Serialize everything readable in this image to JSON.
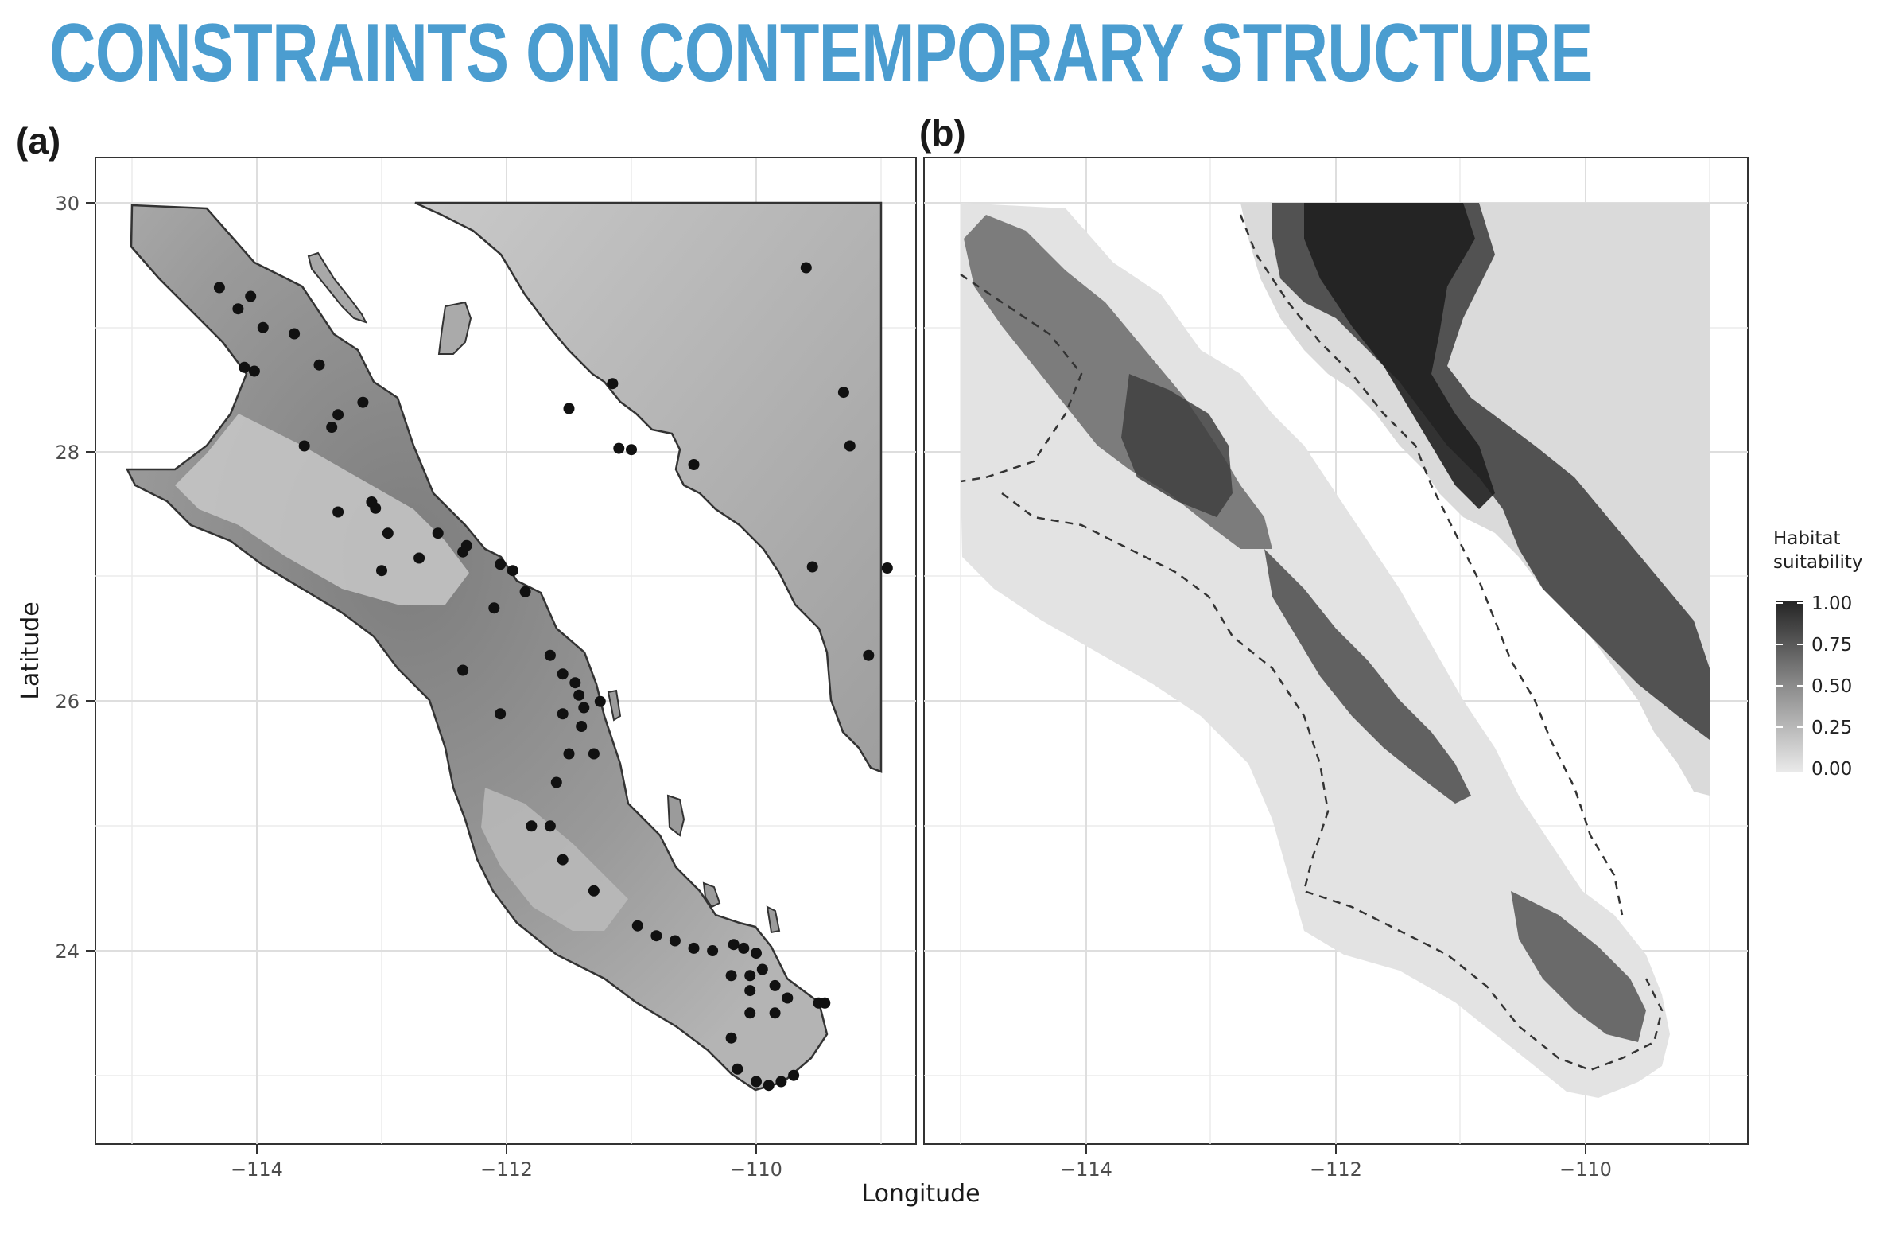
{
  "title": "CONSTRAINTS ON CONTEMPORARY STRUCTURE",
  "panels": [
    {
      "label": "(a)"
    },
    {
      "label": "(b)"
    }
  ],
  "axes": {
    "xlabel": "Longitude",
    "ylabel": "Latitude",
    "x_ticks": [
      "−114",
      "−112",
      "−110"
    ],
    "x_tick_values": [
      -114,
      -112,
      -110
    ],
    "y_ticks": [
      "30",
      "28",
      "26",
      "24"
    ],
    "y_tick_values": [
      30,
      28,
      26,
      24
    ]
  },
  "legend": {
    "title_line1": "Habitat",
    "title_line2": "suitability",
    "labels": [
      "1.00",
      "0.75",
      "0.50",
      "0.25",
      "0.00"
    ]
  },
  "occurrence_points": [
    [
      -114.3,
      29.32
    ],
    [
      -114.15,
      29.15
    ],
    [
      -114.05,
      29.25
    ],
    [
      -113.95,
      29.0
    ],
    [
      -113.7,
      28.95
    ],
    [
      -113.5,
      28.7
    ],
    [
      -114.1,
      28.68
    ],
    [
      -114.02,
      28.65
    ],
    [
      -113.15,
      28.4
    ],
    [
      -113.35,
      28.3
    ],
    [
      -113.4,
      28.2
    ],
    [
      -113.62,
      28.05
    ],
    [
      -113.08,
      27.6
    ],
    [
      -113.05,
      27.55
    ],
    [
      -113.35,
      27.52
    ],
    [
      -112.95,
      27.35
    ],
    [
      -112.55,
      27.35
    ],
    [
      -112.35,
      27.2
    ],
    [
      -112.32,
      27.25
    ],
    [
      -112.7,
      27.15
    ],
    [
      -113.0,
      27.05
    ],
    [
      -112.05,
      27.1
    ],
    [
      -111.95,
      27.05
    ],
    [
      -111.85,
      26.88
    ],
    [
      -112.1,
      26.75
    ],
    [
      -112.35,
      26.25
    ],
    [
      -111.65,
      26.37
    ],
    [
      -111.55,
      26.22
    ],
    [
      -111.45,
      26.15
    ],
    [
      -111.42,
      26.05
    ],
    [
      -111.38,
      25.95
    ],
    [
      -111.55,
      25.9
    ],
    [
      -112.05,
      25.9
    ],
    [
      -111.4,
      25.8
    ],
    [
      -111.3,
      25.58
    ],
    [
      -111.5,
      25.58
    ],
    [
      -111.6,
      25.35
    ],
    [
      -111.8,
      25.0
    ],
    [
      -111.65,
      25.0
    ],
    [
      -111.55,
      24.73
    ],
    [
      -111.3,
      24.48
    ],
    [
      -110.95,
      24.2
    ],
    [
      -110.8,
      24.12
    ],
    [
      -110.65,
      24.08
    ],
    [
      -110.5,
      24.02
    ],
    [
      -110.35,
      24.0
    ],
    [
      -110.18,
      24.05
    ],
    [
      -110.1,
      24.02
    ],
    [
      -110.0,
      23.98
    ],
    [
      -110.05,
      23.8
    ],
    [
      -109.95,
      23.85
    ],
    [
      -110.2,
      23.8
    ],
    [
      -109.85,
      23.72
    ],
    [
      -109.75,
      23.62
    ],
    [
      -109.5,
      23.58
    ],
    [
      -109.45,
      23.58
    ],
    [
      -110.05,
      23.5
    ],
    [
      -109.85,
      23.5
    ],
    [
      -110.2,
      23.3
    ],
    [
      -110.15,
      23.05
    ],
    [
      -110.0,
      22.95
    ],
    [
      -109.9,
      22.92
    ],
    [
      -109.8,
      22.95
    ],
    [
      -109.7,
      23.0
    ],
    [
      -110.05,
      23.68
    ],
    [
      -111.15,
      28.55
    ],
    [
      -111.5,
      28.35
    ],
    [
      -111.1,
      28.03
    ],
    [
      -111.0,
      28.02
    ],
    [
      -110.5,
      27.9
    ],
    [
      -109.25,
      28.05
    ],
    [
      -109.3,
      28.48
    ],
    [
      -109.6,
      29.48
    ],
    [
      -109.55,
      27.08
    ],
    [
      -108.95,
      27.07
    ],
    [
      -109.1,
      26.37
    ],
    [
      -111.25,
      26.0
    ]
  ]
}
